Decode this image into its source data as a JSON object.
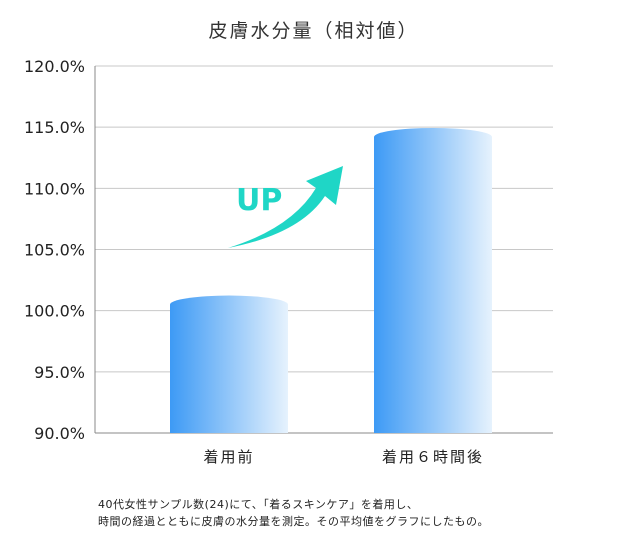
{
  "chart_data": {
    "type": "bar",
    "title": "皮膚水分量（相対値）",
    "categories": [
      "着用前",
      "着用６時間後"
    ],
    "values": [
      100.5,
      114.2
    ],
    "ylim": [
      90,
      120
    ],
    "yticks": [
      "90.0%",
      "95.0%",
      "100.0%",
      "105.0%",
      "110.0%",
      "115.0%",
      "120.0%"
    ],
    "ytick_values": [
      90,
      95,
      100,
      105,
      110,
      115,
      120
    ],
    "grid": true,
    "annotation": "UP",
    "colors": {
      "bar_start": "#3d9af5",
      "bar_end": "#e6f2fd",
      "arrow": "#1fd6c6",
      "grid": "#c8c8c8",
      "axis": "#888888"
    }
  },
  "footnote": {
    "line1": "40代女性サンプル数(24)にて、「着るスキンケア」を着用し、",
    "line2": "時間の経過とともに皮膚の水分量を測定。その平均値をグラフにしたもの。"
  }
}
